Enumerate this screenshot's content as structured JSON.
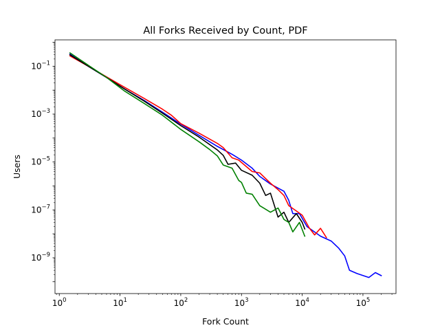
{
  "chart_data": {
    "type": "line",
    "title": "All Forks Received by Count, PDF",
    "xlabel": "Fork Count",
    "ylabel": "Users",
    "xscale": "log",
    "yscale": "log",
    "xlim": [
      0.85,
      350000
    ],
    "ylim": [
      3.2e-11,
      1.26
    ],
    "grid": false,
    "x_ticks": [
      {
        "base": "10",
        "exp": "0",
        "value": 1
      },
      {
        "base": "10",
        "exp": "1",
        "value": 10
      },
      {
        "base": "10",
        "exp": "2",
        "value": 100
      },
      {
        "base": "10",
        "exp": "3",
        "value": 1000
      },
      {
        "base": "10",
        "exp": "4",
        "value": 10000
      },
      {
        "base": "10",
        "exp": "5",
        "value": 100000
      }
    ],
    "y_ticks": [
      {
        "base": "10",
        "exp": "−1",
        "value": 0.1
      },
      {
        "base": "10",
        "exp": "−3",
        "value": 0.001
      },
      {
        "base": "10",
        "exp": "−5",
        "value": 1e-05
      },
      {
        "base": "10",
        "exp": "−7",
        "value": 1e-07
      },
      {
        "base": "10",
        "exp": "−9",
        "value": 1e-09
      }
    ],
    "series": [
      {
        "color": "#0000ff",
        "points": [
          [
            1.5,
            0.32
          ],
          [
            3,
            0.1
          ],
          [
            6,
            0.034
          ],
          [
            12,
            0.011
          ],
          [
            25,
            0.0037
          ],
          [
            50,
            0.0012
          ],
          [
            100,
            0.00038
          ],
          [
            200,
            0.00013
          ],
          [
            400,
            4.5e-05
          ],
          [
            700,
            2.1e-05
          ],
          [
            1000,
            1.2e-05
          ],
          [
            1500,
            5.5e-06
          ],
          [
            2000,
            2.5e-06
          ],
          [
            3000,
            1.2e-06
          ],
          [
            5000,
            6e-07
          ],
          [
            6000,
            2.5e-07
          ],
          [
            7000,
            7e-08
          ],
          [
            9000,
            7e-08
          ],
          [
            12000,
            2e-08
          ],
          [
            20000,
            8e-09
          ],
          [
            30000,
            5e-09
          ],
          [
            40000,
            2.5e-09
          ],
          [
            50000,
            1.2e-09
          ],
          [
            60000,
            3e-10
          ],
          [
            80000,
            2.2e-10
          ],
          [
            125000,
            1.5e-10
          ],
          [
            160000,
            2.4e-10
          ],
          [
            200000,
            1.8e-10
          ]
        ]
      },
      {
        "color": "#ff0000",
        "points": [
          [
            1.5,
            0.27
          ],
          [
            3,
            0.1
          ],
          [
            6,
            0.036
          ],
          [
            12,
            0.013
          ],
          [
            25,
            0.0045
          ],
          [
            50,
            0.0016
          ],
          [
            70,
            0.0009
          ],
          [
            100,
            0.0004
          ],
          [
            200,
            0.00016
          ],
          [
            400,
            6e-05
          ],
          [
            500,
            4e-05
          ],
          [
            700,
            1.5e-05
          ],
          [
            900,
            1.2e-05
          ],
          [
            1500,
            4e-06
          ],
          [
            2000,
            3.5e-06
          ],
          [
            3000,
            1.3e-06
          ],
          [
            4000,
            7e-07
          ],
          [
            5000,
            4e-07
          ],
          [
            6000,
            1.5e-07
          ],
          [
            8000,
            9e-08
          ],
          [
            10000,
            6e-08
          ],
          [
            13000,
            1.8e-08
          ],
          [
            16000,
            9e-09
          ],
          [
            20000,
            1.7e-08
          ],
          [
            25000,
            7e-09
          ]
        ]
      },
      {
        "color": "#000000",
        "points": [
          [
            1.5,
            0.3
          ],
          [
            3,
            0.1
          ],
          [
            6,
            0.034
          ],
          [
            12,
            0.011
          ],
          [
            25,
            0.0035
          ],
          [
            50,
            0.0011
          ],
          [
            100,
            0.00033
          ],
          [
            200,
            0.00011
          ],
          [
            400,
            3.2e-05
          ],
          [
            500,
            1.9e-05
          ],
          [
            600,
            8e-06
          ],
          [
            800,
            9e-06
          ],
          [
            1000,
            4.5e-06
          ],
          [
            1500,
            2.8e-06
          ],
          [
            2000,
            1.3e-06
          ],
          [
            2500,
            4e-07
          ],
          [
            3000,
            5e-07
          ],
          [
            4000,
            5e-08
          ],
          [
            5000,
            8e-08
          ],
          [
            6000,
            3e-08
          ],
          [
            8000,
            7e-08
          ],
          [
            10000,
            3e-08
          ],
          [
            11000,
            1.6e-08
          ]
        ]
      },
      {
        "color": "#008000",
        "points": [
          [
            1.5,
            0.36
          ],
          [
            3,
            0.11
          ],
          [
            6,
            0.034
          ],
          [
            12,
            0.009
          ],
          [
            25,
            0.0028
          ],
          [
            50,
            0.0009
          ],
          [
            100,
            0.00023
          ],
          [
            200,
            7e-05
          ],
          [
            300,
            3.3e-05
          ],
          [
            400,
            1.8e-05
          ],
          [
            500,
            7.5e-06
          ],
          [
            700,
            5.5e-06
          ],
          [
            900,
            1.7e-06
          ],
          [
            1000,
            1.4e-06
          ],
          [
            1200,
            5e-07
          ],
          [
            1500,
            4.5e-07
          ],
          [
            2000,
            1.5e-07
          ],
          [
            3000,
            8e-08
          ],
          [
            4000,
            1.2e-07
          ],
          [
            5000,
            4e-08
          ],
          [
            6000,
            3e-08
          ],
          [
            7000,
            1.2e-08
          ],
          [
            9000,
            3e-08
          ],
          [
            11000,
            8e-09
          ]
        ]
      }
    ]
  }
}
